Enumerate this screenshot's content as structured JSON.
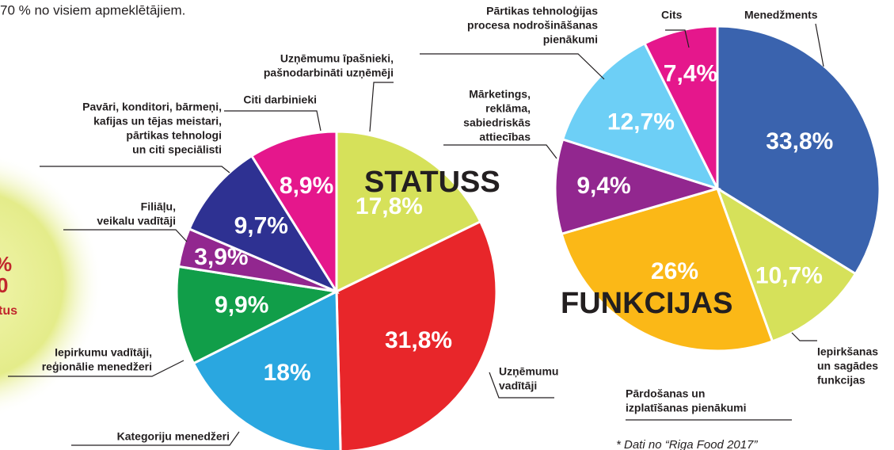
{
  "header_fragment": "70 % no visiem apmeklētājiem.",
  "side_fragments": [
    "%",
    "0",
    "tus"
  ],
  "footnote": "*  Dati no “Riga Food 2017”",
  "chart_data": [
    {
      "type": "pie",
      "title": "STATUSS",
      "labels": [
        [
          "Uzņēmumu īpašnieki,",
          "pašnodarbināti uzņēmēji"
        ],
        [
          "Uzņēmumu",
          "vadītāji"
        ],
        [
          "Kategoriju menedžeri"
        ],
        [
          "Iepirkumu vadītāji,",
          "reģionālie menedžeri"
        ],
        [
          "Filiāļu,",
          "veikalu vadītāji"
        ],
        [
          "Pavāri, konditori, bārmeņi,",
          "kafijas un tējas meistari,",
          "pārtikas tehnologi",
          "un citi speciālisti"
        ],
        [
          "Citi darbinieki"
        ]
      ],
      "values": [
        17.8,
        31.8,
        18,
        9.9,
        3.9,
        9.7,
        8.9
      ],
      "value_labels": [
        "17,8%",
        "31,8%",
        "18%",
        "9,9%",
        "3,9%",
        "9,7%",
        "8,9%"
      ],
      "colors": [
        "#d6e15a",
        "#e8262a",
        "#2aa7e0",
        "#119e49",
        "#92278f",
        "#2e3192",
        "#e5178c"
      ]
    },
    {
      "type": "pie",
      "title": "FUNKCIJAS",
      "labels": [
        [
          "Menedžments"
        ],
        [
          "Iepirkšanas",
          "un sagādes",
          "funkcijas"
        ],
        [
          "Pārdošanas un",
          "izplatīšanas pienākumi"
        ],
        [
          "Mārketings,",
          "reklāma,",
          "sabiedriskās",
          "attiecības"
        ],
        [
          "Pārtikas tehnoloģijas",
          "procesa nodrošināšanas",
          "pienākumi"
        ],
        [
          "Cits"
        ]
      ],
      "values": [
        33.8,
        10.7,
        26,
        9.4,
        12.7,
        7.4
      ],
      "value_labels": [
        "33,8%",
        "10,7%",
        "26%",
        "9,4%",
        "12,7%",
        "7,4%"
      ],
      "colors": [
        "#3a63ae",
        "#d6e15a",
        "#fbb817",
        "#92278f",
        "#6dcff6",
        "#e5178c"
      ]
    }
  ]
}
